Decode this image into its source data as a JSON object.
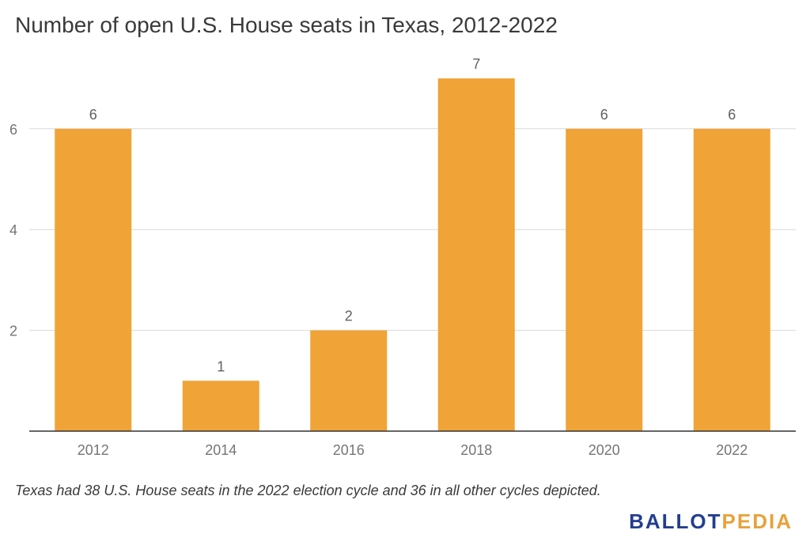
{
  "title": "Number of open U.S. House seats in Texas, 2012-2022",
  "footnote": "Texas had 38 U.S. House seats in the 2022 election cycle and 36 in all other cycles depicted.",
  "logo": {
    "part1": "BALLOT",
    "part2": "PEDIA"
  },
  "chart_data": {
    "type": "bar",
    "categories": [
      "2012",
      "2014",
      "2016",
      "2018",
      "2020",
      "2022"
    ],
    "values": [
      6,
      1,
      2,
      7,
      6,
      6
    ],
    "data_labels": [
      "6",
      "1",
      "2",
      "7",
      "6",
      "6"
    ],
    "yticks": [
      2,
      4,
      6
    ],
    "ytick_labels": [
      "2",
      "4",
      "6"
    ],
    "ylim": [
      0,
      7.5
    ],
    "grid": true,
    "legend": "none",
    "colors": {
      "bar": "#f0a336",
      "grid": "#d9d9d9",
      "axis": "#333333",
      "tick_text": "#757575",
      "label_text": "#616161"
    }
  }
}
